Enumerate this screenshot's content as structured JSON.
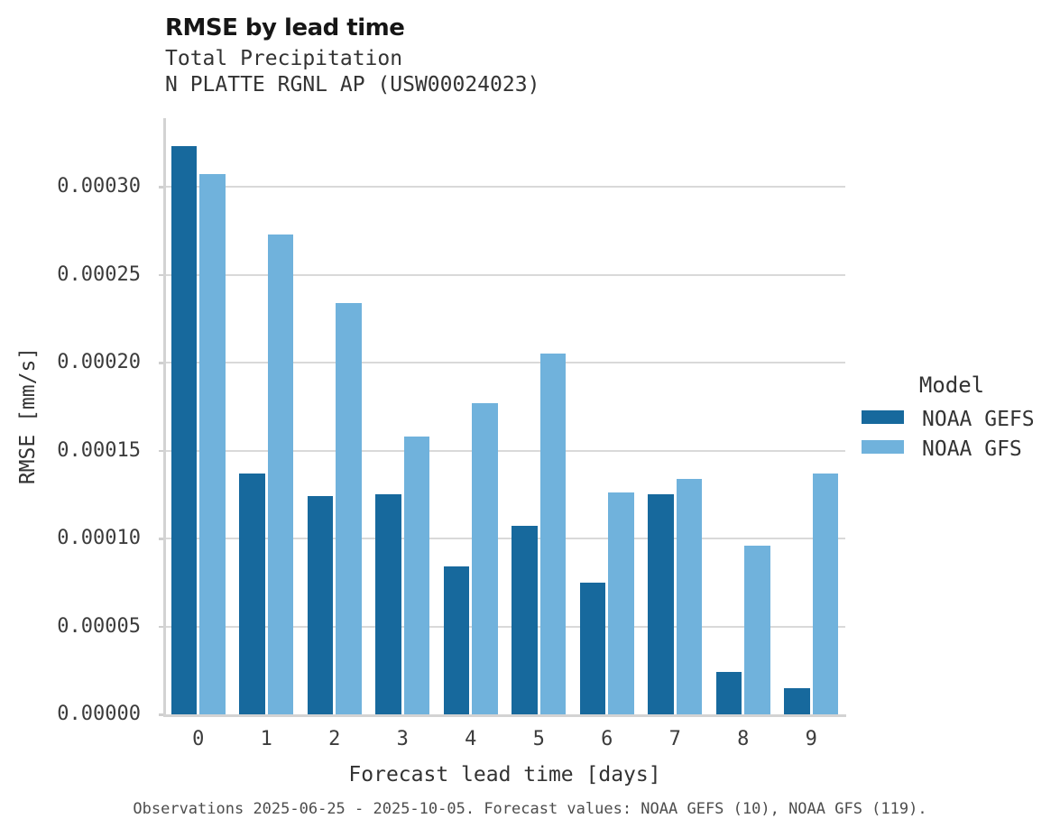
{
  "header": {
    "title": "RMSE by lead time",
    "subtitle1": "Total Precipitation",
    "subtitle2": "N PLATTE RGNL AP (USW00024023)"
  },
  "legend": {
    "title": "Model",
    "entries": [
      {
        "label": "NOAA GEFS",
        "color": "#17699d"
      },
      {
        "label": "NOAA GFS",
        "color": "#70b2dc"
      }
    ]
  },
  "caption": "Observations 2025-06-25 - 2025-10-05. Forecast values: NOAA GEFS (10), NOAA GFS (119).",
  "chart_data": {
    "type": "bar",
    "title": "RMSE by lead time",
    "subtitle": "Total Precipitation",
    "station": "N PLATTE RGNL AP (USW00024023)",
    "xlabel": "Forecast lead time [days]",
    "ylabel": "RMSE [mm/s]",
    "categories": [
      "0",
      "1",
      "2",
      "3",
      "4",
      "5",
      "6",
      "7",
      "8",
      "9"
    ],
    "series": [
      {
        "name": "NOAA GEFS",
        "color": "#17699d",
        "values": [
          0.000323,
          0.000137,
          0.000124,
          0.000125,
          8.4e-05,
          0.000107,
          7.5e-05,
          0.000125,
          2.4e-05,
          1.5e-05
        ]
      },
      {
        "name": "NOAA GFS",
        "color": "#70b2dc",
        "values": [
          0.000307,
          0.000273,
          0.000234,
          0.000158,
          0.000177,
          0.000205,
          0.000126,
          0.000134,
          9.6e-05,
          0.000137
        ]
      }
    ],
    "yticks": {
      "values": [
        0,
        5e-05,
        0.0001,
        0.00015,
        0.0002,
        0.00025,
        0.0003
      ],
      "labels": [
        "0.00000",
        "0.00005",
        "0.00010",
        "0.00015",
        "0.00020",
        "0.00025",
        "0.00030"
      ]
    },
    "ylim": [
      0,
      0.000339
    ],
    "grid": "horizontal",
    "legend_title": "Model",
    "legend_position": "right"
  }
}
